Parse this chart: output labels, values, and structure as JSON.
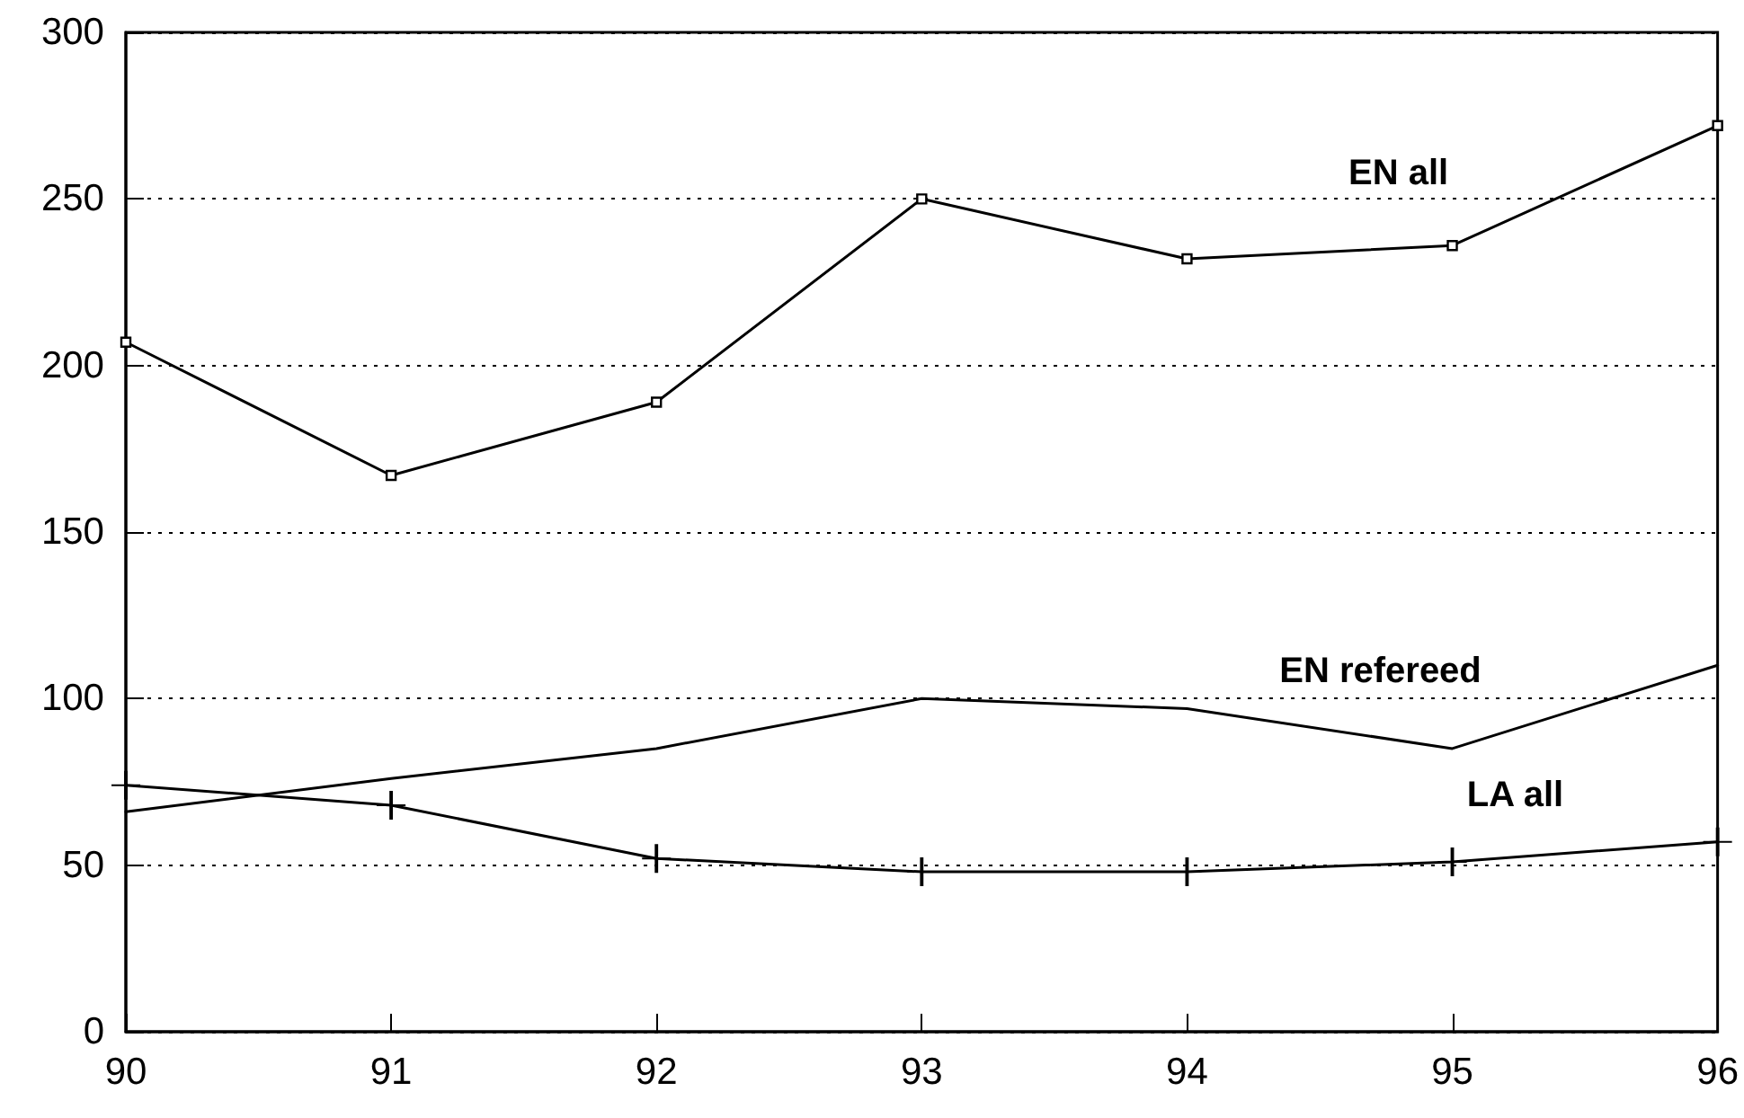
{
  "chart_data": {
    "type": "line",
    "x": [
      90,
      91,
      92,
      93,
      94,
      95,
      96
    ],
    "series": [
      {
        "name": "EN all",
        "color": "#000000",
        "marker": "square",
        "values": [
          207,
          167,
          189,
          250,
          232,
          236,
          272
        ]
      },
      {
        "name": "EN refereed",
        "color": "#000000",
        "marker": "none",
        "values": [
          66,
          76,
          85,
          100,
          97,
          85,
          110
        ]
      },
      {
        "name": "LA all",
        "color": "#000000",
        "marker": "cross",
        "values": [
          74,
          68,
          52,
          48,
          48,
          51,
          57
        ]
      }
    ],
    "xlim": [
      90,
      96
    ],
    "xticks": [
      90,
      91,
      92,
      93,
      94,
      95,
      96
    ],
    "ylim": [
      0,
      300
    ],
    "yticks": [
      0,
      50,
      100,
      150,
      200,
      250,
      300
    ],
    "grid": "y",
    "legend": false,
    "line_style": "solid"
  }
}
